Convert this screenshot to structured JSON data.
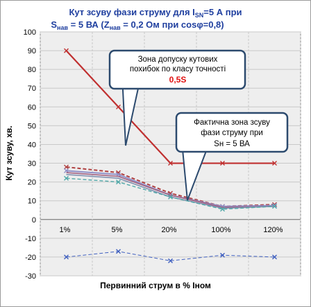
{
  "chart_data": {
    "type": "line",
    "title_line1_pre": "Кут зсуву фази струму для I",
    "title_line1_sub": "SN",
    "title_line1_post": "=5 А при",
    "title_line2_a": "S",
    "title_line2_a_sub": "нав",
    "title_line2_b": " = 5 ВА (Z",
    "title_line2_b_sub": "нав",
    "title_line2_c": " = 0,2 Ом при cosφ=0,8)",
    "xlabel": "Первинний струм в % Іном",
    "ylabel": "Кут зсуву, хв.",
    "categories": [
      "1%",
      "5%",
      "20%",
      "100%",
      "120%"
    ],
    "ylim": [
      -30,
      100
    ],
    "yticks": [
      -30,
      -20,
      -10,
      0,
      10,
      20,
      30,
      40,
      50,
      60,
      70,
      80,
      90,
      100
    ],
    "grid": true,
    "colors": {
      "limit": "#c03030",
      "plot_bg": "#eeeeee",
      "callout_border": "#2c4a6e",
      "callout_fill": "#ffffff",
      "title": "#1f3f9f"
    },
    "series": [
      {
        "values": [
          90,
          60,
          30,
          30,
          30
        ],
        "color": "#c03030",
        "style": "solid",
        "width": 2.2,
        "marker": "x"
      },
      {
        "values": [
          28,
          25,
          14,
          7,
          8
        ],
        "color": "#b04040",
        "style": "dashed",
        "width": 2,
        "marker": "x"
      },
      {
        "values": [
          26,
          24,
          13,
          7,
          7.5
        ],
        "color": "#9090c8",
        "style": "solid",
        "width": 2,
        "marker": "x"
      },
      {
        "values": [
          25,
          23,
          13,
          6.5,
          7
        ],
        "color": "#a06080",
        "style": "solid",
        "width": 1.6,
        "marker": "none"
      },
      {
        "values": [
          24,
          22,
          12,
          6,
          7
        ],
        "color": "#8090b0",
        "style": "solid",
        "width": 1.6,
        "marker": "none"
      },
      {
        "values": [
          22,
          20,
          12,
          5.5,
          7
        ],
        "color": "#50a8a8",
        "style": "dashed",
        "width": 1.4,
        "marker": "x"
      },
      {
        "values": [
          -20,
          -17,
          -22,
          -19,
          -20
        ],
        "color": "#4060c0",
        "style": "dashed",
        "width": 1,
        "marker": "x"
      }
    ],
    "annotations": [
      {
        "lines": [
          "Зона допуску кутових",
          "похибок  по класу  точності"
        ],
        "highlight": "0,5S"
      },
      {
        "lines": [
          "Фактична зона зсуву",
          "фази  струму при",
          "Sн = 5 ВА"
        ]
      }
    ]
  }
}
